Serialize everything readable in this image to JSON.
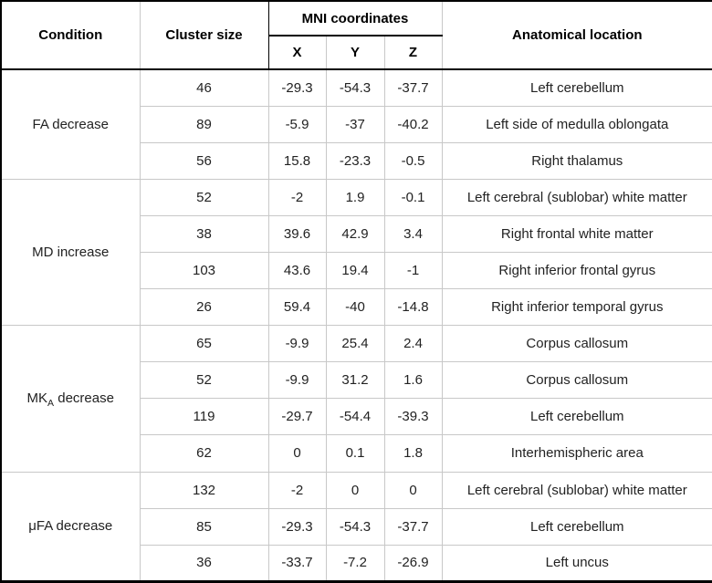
{
  "table": {
    "header": {
      "condition": "Condition",
      "cluster_size": "Cluster size",
      "mni": "MNI coordinates",
      "x": "X",
      "y": "Y",
      "z": "Z",
      "anatomical": "Anatomical location"
    },
    "groups": [
      {
        "condition": {
          "pre": "FA decrease",
          "sub": "",
          "post": ""
        },
        "rows": [
          {
            "cluster": "46",
            "x": "-29.3",
            "y": "-54.3",
            "z": "-37.7",
            "location": "Left cerebellum"
          },
          {
            "cluster": "89",
            "x": "-5.9",
            "y": "-37",
            "z": "-40.2",
            "location": "Left side of medulla oblongata"
          },
          {
            "cluster": "56",
            "x": "15.8",
            "y": "-23.3",
            "z": "-0.5",
            "location": "Right thalamus"
          }
        ]
      },
      {
        "condition": {
          "pre": "MD increase",
          "sub": "",
          "post": ""
        },
        "rows": [
          {
            "cluster": "52",
            "x": "-2",
            "y": "1.9",
            "z": "-0.1",
            "location": "Left cerebral (sublobar) white matter"
          },
          {
            "cluster": "38",
            "x": "39.6",
            "y": "42.9",
            "z": "3.4",
            "location": "Right frontal white matter"
          },
          {
            "cluster": "103",
            "x": "43.6",
            "y": "19.4",
            "z": "-1",
            "location": "Right inferior frontal gyrus"
          },
          {
            "cluster": "26",
            "x": "59.4",
            "y": "-40",
            "z": "-14.8",
            "location": "Right inferior temporal gyrus"
          }
        ]
      },
      {
        "condition": {
          "pre": "MK",
          "sub": "A",
          "post": " decrease"
        },
        "rows": [
          {
            "cluster": "65",
            "x": "-9.9",
            "y": "25.4",
            "z": "2.4",
            "location": "Corpus callosum"
          },
          {
            "cluster": "52",
            "x": "-9.9",
            "y": "31.2",
            "z": "1.6",
            "location": "Corpus callosum"
          },
          {
            "cluster": "119",
            "x": "-29.7",
            "y": "-54.4",
            "z": "-39.3",
            "location": "Left cerebellum"
          },
          {
            "cluster": "62",
            "x": "0",
            "y": "0.1",
            "z": "1.8",
            "location": "Interhemispheric area"
          }
        ]
      },
      {
        "condition": {
          "pre": "μFA decrease",
          "sub": "",
          "post": ""
        },
        "rows": [
          {
            "cluster": "132",
            "x": "-2",
            "y": "0",
            "z": "0",
            "location": "Left cerebral (sublobar) white matter"
          },
          {
            "cluster": "85",
            "x": "-29.3",
            "y": "-54.3",
            "z": "-37.7",
            "location": "Left cerebellum"
          },
          {
            "cluster": "36",
            "x": "-33.7",
            "y": "-7.2",
            "z": "-26.9",
            "location": "Left uncus"
          }
        ]
      }
    ],
    "colors": {
      "grid_line": "#c8c8c8",
      "rule_line": "#000000",
      "text": "#222222",
      "header_text": "#000000",
      "background": "#ffffff"
    }
  }
}
